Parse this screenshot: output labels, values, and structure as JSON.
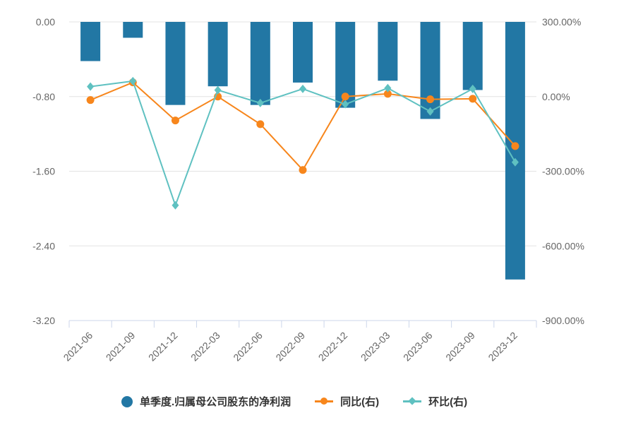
{
  "chart_data": {
    "type": "bar+line",
    "categories": [
      "2021-06",
      "2021-09",
      "2021-12",
      "2022-03",
      "2022-06",
      "2022-09",
      "2022-12",
      "2023-03",
      "2023-06",
      "2023-09",
      "2023-12"
    ],
    "left_axis": {
      "ylim": [
        -3.2,
        0
      ],
      "ticks": [
        "0.00",
        "-0.80",
        "-1.60",
        "-2.40",
        "-3.20"
      ],
      "tick_values": [
        0,
        -0.8,
        -1.6,
        -2.4,
        -3.2
      ]
    },
    "right_axis": {
      "ylim": [
        -900,
        300
      ],
      "ticks": [
        "300.00%",
        "0.00%",
        "-300.00%",
        "-600.00%",
        "-900.00%"
      ],
      "tick_values": [
        300,
        0,
        -300,
        -600,
        -900
      ]
    },
    "series": [
      {
        "name": "单季度.归属母公司股东的净利润",
        "type": "bar",
        "axis": "left",
        "color": "#2277a4",
        "values": [
          -0.42,
          -0.17,
          -0.89,
          -0.69,
          -0.89,
          -0.65,
          -0.92,
          -0.63,
          -1.04,
          -0.73,
          -2.76
        ]
      },
      {
        "name": "同比(右)",
        "type": "line",
        "axis": "right",
        "marker": "circle",
        "color": "#f7861c",
        "values": [
          -14,
          57,
          -96,
          0,
          -111,
          -295,
          0,
          11,
          -11,
          -9,
          -199
        ]
      },
      {
        "name": "环比(右)",
        "type": "line",
        "axis": "right",
        "marker": "diamond",
        "color": "#5fc1c1",
        "values": [
          40,
          62,
          -437,
          26,
          -26,
          31,
          -31,
          34,
          -60,
          31,
          -264
        ]
      }
    ],
    "legend_position": "bottom",
    "grid": true
  }
}
